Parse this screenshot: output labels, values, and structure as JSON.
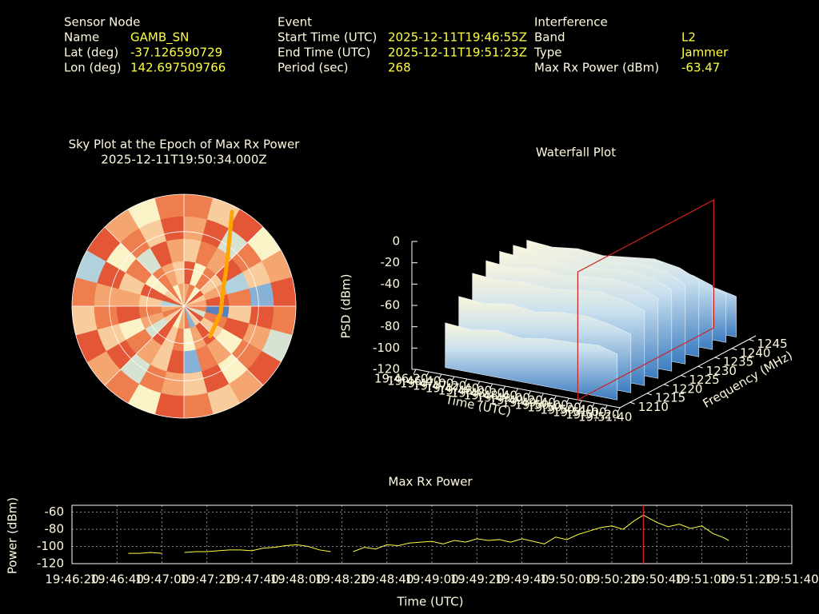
{
  "info": {
    "columns": [
      {
        "heading": "Sensor Node",
        "rows": [
          {
            "label": "Name",
            "value": "GAMB_SN"
          },
          {
            "label": "Lat (deg)",
            "value": "-37.126590729"
          },
          {
            "label": "Lon (deg)",
            "value": "142.697509766"
          }
        ]
      },
      {
        "heading": "Event",
        "rows": [
          {
            "label": "Start Time (UTC)",
            "value": "2025-12-11T19:46:55Z"
          },
          {
            "label": "End Time (UTC)",
            "value": "2025-12-11T19:51:23Z"
          },
          {
            "label": "Period (sec)",
            "value": "268"
          }
        ]
      },
      {
        "heading": "Interference",
        "rows": [
          {
            "label": "Band",
            "value": "L2"
          },
          {
            "label": "Type",
            "value": "Jammer"
          },
          {
            "label": "Max Rx Power (dBm)",
            "value": "-63.47"
          }
        ]
      }
    ]
  },
  "chart_data": [
    {
      "type": "polar_heatmap",
      "title": "Sky Plot at the Epoch of Max Rx Power",
      "subtitle": "2025-12-11T19:50:34.000Z",
      "colormap": [
        "#2b4fa8",
        "#9ecae1",
        "#fbf3c8",
        "#f4925a",
        "#d7301f"
      ],
      "values": [
        [
          0.8,
          0.6,
          0.9,
          0.5,
          0.7,
          0.9,
          0.8,
          0.4,
          0.9,
          0.7,
          0.6,
          0.8,
          0.9,
          0.5,
          0.8,
          0.7,
          0.9,
          0.6,
          0.8,
          0.3,
          0.9,
          0.7,
          0.5,
          0.8
        ],
        [
          0.7,
          0.9,
          0.4,
          0.8,
          0.6,
          0.2,
          0.9,
          0.7,
          0.8,
          0.5,
          0.9,
          0.6,
          0.7,
          0.8,
          0.4,
          0.9,
          0.6,
          0.8,
          0.7,
          0.9,
          0.5,
          0.8,
          0.6,
          0.9
        ],
        [
          0.6,
          0.8,
          0.7,
          0.9,
          0.3,
          0.8,
          0.6,
          0.9,
          0.5,
          0.7,
          0.8,
          0.2,
          0.9,
          0.6,
          0.7,
          0.8,
          0.5,
          0.9,
          0.7,
          0.6,
          0.8,
          0.4,
          0.9,
          0.7
        ],
        [
          0.9,
          0.5,
          0.8,
          0.6,
          0.7,
          0.9,
          0.1,
          0.8,
          0.6,
          0.9,
          0.7,
          0.5,
          0.8,
          0.6,
          0.9,
          0.4,
          0.7,
          0.8,
          0.6,
          0.9,
          0.5,
          0.8,
          0.7,
          0.6
        ],
        [
          0.7,
          0.8,
          0.5,
          0.9,
          0.6,
          0.7,
          0.8,
          0.4,
          0.9,
          0.6,
          0.2,
          0.8,
          0.7,
          0.5,
          0.9,
          0.6,
          0.8,
          0.7,
          0.3,
          0.9,
          0.6,
          0.8,
          0.5,
          0.7
        ]
      ],
      "rgrid": [
        0,
        30,
        60
      ],
      "azgrid": [
        0,
        45,
        90,
        135,
        180,
        225,
        270,
        315
      ],
      "track": {
        "color": "#ffa500",
        "az": [
          27,
          32,
          40,
          50,
          65,
          100,
          139
        ],
        "el": [
          5,
          20,
          35,
          46,
          55,
          60,
          58
        ]
      }
    },
    {
      "type": "waterfall",
      "title": "Waterfall Plot",
      "xlabel": "Time (UTC)",
      "ylabel": "Frequency (MHz)",
      "zlabel": "PSD (dBm)",
      "x": [
        "19:46:50",
        "19:47:30",
        "19:48:10",
        "19:48:50",
        "19:49:30",
        "19:50:10",
        "19:50:50",
        "19:51:20"
      ],
      "y": [
        1210,
        1214,
        1218,
        1222,
        1226,
        1230,
        1234,
        1238,
        1242,
        1245
      ],
      "values": [
        [
          -78,
          -80,
          -76,
          -79,
          -75,
          -74,
          -72,
          -77
        ],
        [
          -60,
          -62,
          -58,
          -61,
          -57,
          -56,
          -60,
          -65
        ],
        [
          -45,
          -47,
          -44,
          -46,
          -43,
          -40,
          -44,
          -50
        ],
        [
          -40,
          -42,
          -38,
          -41,
          -37,
          -35,
          -38,
          -45
        ],
        [
          -38,
          -40,
          -37,
          -39,
          -36,
          -33,
          -36,
          -44
        ],
        [
          -39,
          -41,
          -38,
          -40,
          -37,
          -34,
          -37,
          -46
        ],
        [
          -41,
          -43,
          -40,
          -42,
          -39,
          -36,
          -40,
          -48
        ],
        [
          -55,
          -57,
          -53,
          -56,
          -52,
          -50,
          -54,
          -60
        ],
        [
          -72,
          -74,
          -70,
          -73,
          -69,
          -68,
          -70,
          -75
        ],
        [
          -80,
          -82,
          -78,
          -81,
          -77,
          -76,
          -78,
          -82
        ]
      ],
      "xlim": [
        "19:46:20",
        "19:51:40"
      ],
      "xticks": [
        "19:46:20",
        "19:46:40",
        "19:47:00",
        "19:47:20",
        "19:47:40",
        "19:48:00",
        "19:48:20",
        "19:48:40",
        "19:49:00",
        "19:49:20",
        "19:49:40",
        "19:50:00",
        "19:50:20",
        "19:50:40",
        "19:51:00",
        "19:51:20",
        "19:51:40"
      ],
      "ylim": [
        1207,
        1247
      ],
      "yticks": [
        1210,
        1215,
        1220,
        1225,
        1230,
        1235,
        1240,
        1245
      ],
      "zlim": [
        -120,
        0
      ],
      "zticks": [
        0,
        -20,
        -40,
        -60,
        -80,
        -100,
        -120
      ],
      "marker_x": "19:50:34",
      "marker_color": "#d02020"
    },
    {
      "type": "line",
      "title": "Max Rx Power",
      "xlabel": "Time (UTC)",
      "ylabel": "Power (dBm)",
      "color": "#ffff40",
      "x": [
        "19:46:45",
        "19:46:50",
        "19:46:55",
        "19:47:00",
        "19:47:05",
        "19:47:10",
        "19:47:15",
        "19:47:20",
        "19:47:25",
        "19:47:30",
        "19:47:35",
        "19:47:40",
        "19:47:45",
        "19:47:50",
        "19:47:55",
        "19:48:00",
        "19:48:05",
        "19:48:10",
        "19:48:15",
        "19:48:20",
        "19:48:25",
        "19:48:30",
        "19:48:35",
        "19:48:40",
        "19:48:45",
        "19:48:50",
        "19:48:55",
        "19:49:00",
        "19:49:05",
        "19:49:10",
        "19:49:15",
        "19:49:20",
        "19:49:25",
        "19:49:30",
        "19:49:35",
        "19:49:40",
        "19:49:45",
        "19:49:50",
        "19:49:55",
        "19:50:00",
        "19:50:05",
        "19:50:10",
        "19:50:15",
        "19:50:20",
        "19:50:25",
        "19:50:30",
        "19:50:34",
        "19:50:40",
        "19:50:45",
        "19:50:50",
        "19:50:55",
        "19:51:00",
        "19:51:05",
        "19:51:10",
        "19:51:12"
      ],
      "values": [
        -108,
        -108,
        -107,
        -108,
        null,
        -107,
        -106,
        -106,
        -105,
        -104,
        -104,
        -105,
        -102,
        -101,
        -99,
        -98,
        -100,
        -104,
        -106,
        null,
        -106,
        -101,
        -103,
        -98,
        -99,
        -96,
        -95,
        -94,
        -97,
        -93,
        -95,
        -91,
        -93,
        -92,
        -95,
        -91,
        -94,
        -97,
        -89,
        -92,
        -86,
        -82,
        -78,
        -76,
        -80,
        -70,
        -63.47,
        -72,
        -77,
        -74,
        -79,
        -76,
        -85,
        -90,
        -93
      ],
      "xlim": [
        "19:46:20",
        "19:51:40"
      ],
      "xticks": [
        "19:46:20",
        "19:46:40",
        "19:47:00",
        "19:47:20",
        "19:47:40",
        "19:48:00",
        "19:48:20",
        "19:48:40",
        "19:49:00",
        "19:49:20",
        "19:49:40",
        "19:50:00",
        "19:50:20",
        "19:50:40",
        "19:51:00",
        "19:51:20",
        "19:51:40"
      ],
      "ylim": [
        -120,
        -52
      ],
      "yticks": [
        -60,
        -80,
        -100,
        -120
      ],
      "grid": true,
      "marker_x": "19:50:34",
      "marker_color": "#e02020"
    }
  ]
}
